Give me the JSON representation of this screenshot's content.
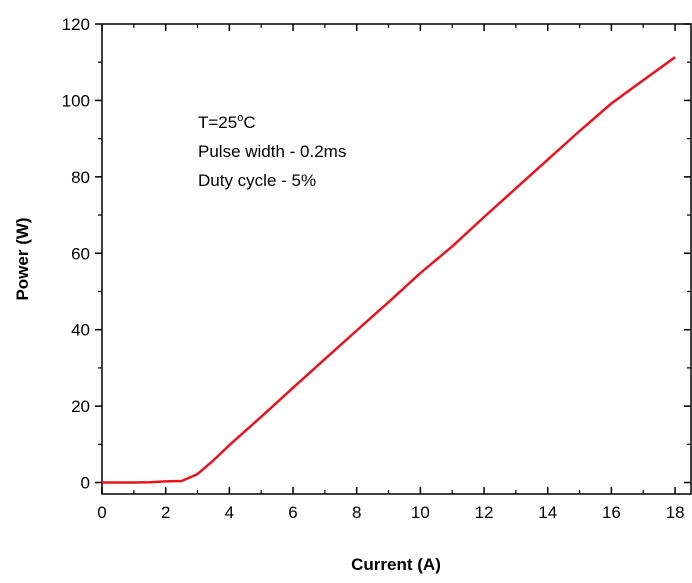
{
  "chart_data": {
    "type": "line",
    "xlabel": "Current (A)",
    "ylabel": "Power (W)",
    "xlim": [
      0,
      18.5
    ],
    "ylim": [
      -3,
      120
    ],
    "x_ticks": [
      "0",
      "2",
      "4",
      "6",
      "8",
      "10",
      "12",
      "14",
      "16",
      "18"
    ],
    "y_ticks": [
      "0",
      "20",
      "40",
      "60",
      "80",
      "100",
      "120"
    ],
    "series": [
      {
        "color": "#e8141c",
        "x": [
          0,
          0.5,
          1,
          1.5,
          2,
          2.5,
          3,
          3.5,
          4,
          5,
          6,
          7,
          8,
          9,
          10,
          11,
          12,
          13,
          14,
          15,
          16,
          17,
          18
        ],
        "y": [
          0,
          0,
          0,
          0.1,
          0.3,
          0.4,
          2.2,
          5.8,
          9.8,
          17.2,
          24.8,
          32.3,
          39.8,
          47.2,
          54.8,
          61.8,
          69.5,
          77.0,
          84.5,
          92.0,
          99.2,
          105.3,
          111.3
        ]
      }
    ],
    "annotations": {
      "line1_prefix": "T=25",
      "line1_sup": "o",
      "line1_suffix": "C",
      "line2": "Pulse width - 0.2ms",
      "line3": "Duty cycle - 5%"
    },
    "grid": false,
    "legend": "none"
  }
}
